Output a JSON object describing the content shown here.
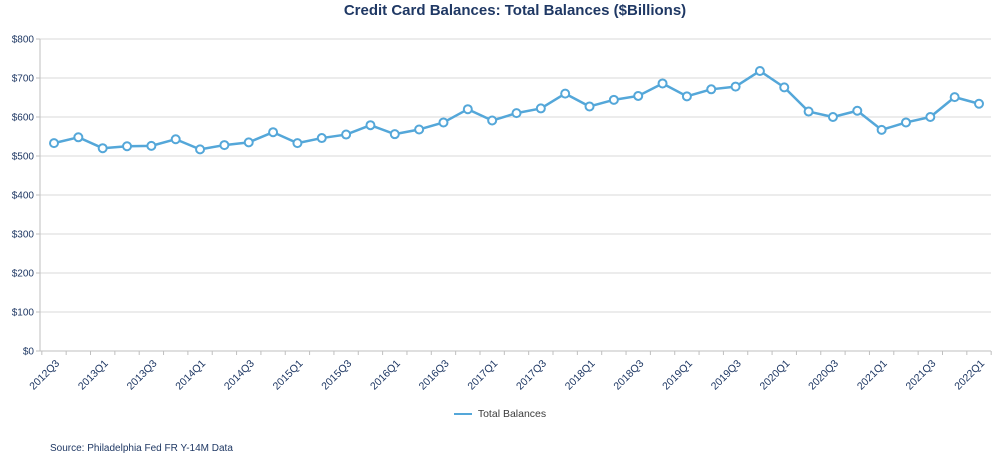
{
  "title": "Credit Card Balances: Total Balances ($Billions)",
  "source_note": "Source: Philadelphia Fed FR Y-14M Data",
  "legend": {
    "label": "Total Balances"
  },
  "colors": {
    "title_text": "#1F3864",
    "axis_text": "#1F3864",
    "series_line": "#54A7D9",
    "marker_fill": "#FFFFFF",
    "gridline": "#D9D9D9",
    "axis_line": "#BFBFBF",
    "legend_text": "#3B3B3B",
    "background": "#FFFFFF"
  },
  "chart_data": {
    "type": "line",
    "title": "Credit Card Balances: Total Balances ($Billions)",
    "xlabel": "",
    "ylabel": "",
    "ylim": [
      0,
      800
    ],
    "y_tick_labels": [
      "$0",
      "$100",
      "$200",
      "$300",
      "$400",
      "$500",
      "$600",
      "$700",
      "$800"
    ],
    "x_tick_label_every": 2,
    "grid": true,
    "legend_position": "bottom",
    "marker": "open-circle",
    "categories": [
      "2012Q3",
      "2012Q4",
      "2013Q1",
      "2013Q2",
      "2013Q3",
      "2013Q4",
      "2014Q1",
      "2014Q2",
      "2014Q3",
      "2014Q4",
      "2015Q1",
      "2015Q2",
      "2015Q3",
      "2015Q4",
      "2016Q1",
      "2016Q2",
      "2016Q3",
      "2016Q4",
      "2017Q1",
      "2017Q2",
      "2017Q3",
      "2017Q4",
      "2018Q1",
      "2018Q2",
      "2018Q3",
      "2018Q4",
      "2019Q1",
      "2019Q2",
      "2019Q3",
      "2019Q4",
      "2020Q1",
      "2020Q2",
      "2020Q3",
      "2020Q4",
      "2021Q1",
      "2021Q2",
      "2021Q3",
      "2021Q4",
      "2022Q1"
    ],
    "series": [
      {
        "name": "Total Balances",
        "values": [
          533,
          548,
          520,
          525,
          526,
          543,
          517,
          528,
          535,
          561,
          533,
          546,
          555,
          579,
          556,
          568,
          586,
          620,
          591,
          610,
          622,
          660,
          627,
          644,
          654,
          686,
          653,
          671,
          678,
          718,
          676,
          614,
          600,
          616,
          567,
          586,
          600,
          651,
          634
        ]
      }
    ]
  }
}
